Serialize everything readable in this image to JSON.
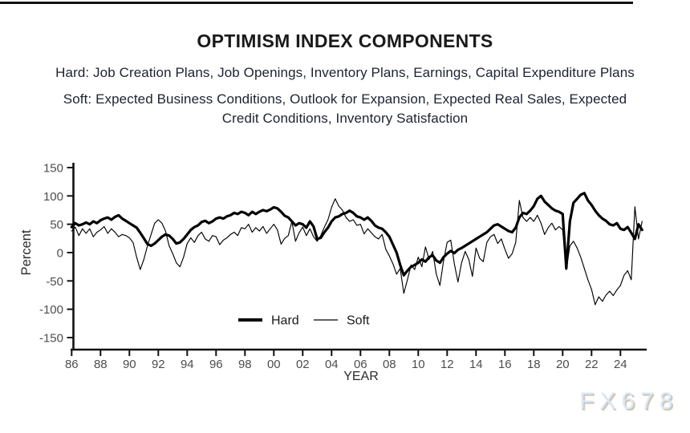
{
  "header": {
    "title": "OPTIMISM INDEX COMPONENTS",
    "hard_desc": "Hard: Job Creation Plans, Job Openings, Inventory Plans, Earnings, Capital Expenditure Plans",
    "soft_desc_line1": "Soft: Expected Business Conditions, Outlook for Expansion, Expected Real Sales, Expected",
    "soft_desc_line2": "Credit Conditions, Inventory Satisfaction"
  },
  "watermark": "FX678",
  "colors": {
    "line": "#000000",
    "axis": "#111111",
    "tick_label": "#4d4d4d",
    "axis_title": "#2b2b2b",
    "watermark_fill": "#dde9f8",
    "watermark_shadow": "#c9bfac"
  },
  "chart_data": {
    "type": "line",
    "title": "OPTIMISM INDEX COMPONENTS",
    "xlabel": "YEAR",
    "ylabel": "Percent",
    "x_start": 1986.0,
    "x_step": 0.25,
    "x_end": 2025.5,
    "ylim": [
      -150,
      150
    ],
    "grid": false,
    "legend_position": "bottom-center-inside",
    "y_ticks": [
      150,
      100,
      50,
      0,
      -50,
      -100,
      -150
    ],
    "x_ticks": [
      {
        "label": "86",
        "year": 1986
      },
      {
        "label": "88",
        "year": 1988
      },
      {
        "label": "90",
        "year": 1990
      },
      {
        "label": "92",
        "year": 1992
      },
      {
        "label": "94",
        "year": 1994
      },
      {
        "label": "96",
        "year": 1996
      },
      {
        "label": "98",
        "year": 1998
      },
      {
        "label": "00",
        "year": 2000
      },
      {
        "label": "02",
        "year": 2002
      },
      {
        "label": "04",
        "year": 2004
      },
      {
        "label": "06",
        "year": 2006
      },
      {
        "label": "08",
        "year": 2008
      },
      {
        "label": "10",
        "year": 2010
      },
      {
        "label": "12",
        "year": 2012
      },
      {
        "label": "14",
        "year": 2014
      },
      {
        "label": "16",
        "year": 2016
      },
      {
        "label": "18",
        "year": 2018
      },
      {
        "label": "20",
        "year": 2020
      },
      {
        "label": "22",
        "year": 2022
      },
      {
        "label": "24",
        "year": 2024
      }
    ],
    "series": [
      {
        "name": "Hard",
        "style": "thick",
        "values": [
          45,
          52,
          48,
          50,
          53,
          50,
          55,
          52,
          57,
          60,
          62,
          58,
          63,
          66,
          60,
          56,
          52,
          48,
          44,
          35,
          25,
          15,
          12,
          16,
          22,
          28,
          32,
          30,
          24,
          16,
          18,
          24,
          32,
          40,
          45,
          48,
          54,
          56,
          52,
          55,
          60,
          62,
          60,
          64,
          66,
          70,
          68,
          72,
          70,
          66,
          72,
          68,
          72,
          75,
          73,
          76,
          80,
          78,
          72,
          65,
          62,
          55,
          48,
          52,
          50,
          44,
          55,
          46,
          24,
          26,
          36,
          44,
          55,
          62,
          64,
          68,
          70,
          74,
          70,
          64,
          62,
          58,
          62,
          56,
          48,
          44,
          42,
          36,
          28,
          14,
          0,
          -22,
          -40,
          -32,
          -25,
          -22,
          -18,
          -12,
          -16,
          -8,
          -5,
          -14,
          -18,
          -8,
          -2,
          3,
          -1,
          5,
          8,
          12,
          16,
          20,
          24,
          28,
          32,
          36,
          42,
          48,
          50,
          46,
          42,
          38,
          36,
          44,
          62,
          70,
          68,
          74,
          82,
          95,
          100,
          90,
          84,
          78,
          74,
          72,
          68,
          -28,
          55,
          88,
          95,
          102,
          105,
          92,
          84,
          74,
          66,
          60,
          56,
          50,
          48,
          52,
          42,
          40,
          45,
          35,
          24,
          50,
          40
        ]
      },
      {
        "name": "Soft",
        "style": "thin",
        "values": [
          38,
          45,
          30,
          42,
          34,
          42,
          28,
          36,
          40,
          46,
          34,
          42,
          36,
          28,
          32,
          30,
          26,
          18,
          -8,
          -30,
          -12,
          12,
          32,
          52,
          58,
          52,
          38,
          12,
          -2,
          -18,
          -25,
          -8,
          16,
          26,
          18,
          30,
          36,
          24,
          20,
          30,
          28,
          14,
          22,
          26,
          32,
          36,
          30,
          44,
          42,
          50,
          36,
          44,
          38,
          46,
          34,
          42,
          50,
          40,
          15,
          25,
          30,
          55,
          20,
          35,
          45,
          30,
          42,
          28,
          20,
          30,
          45,
          58,
          80,
          95,
          82,
          75,
          62,
          55,
          58,
          48,
          50,
          33,
          42,
          35,
          28,
          24,
          32,
          6,
          -6,
          -20,
          -38,
          -28,
          -72,
          -48,
          -22,
          -30,
          -8,
          -25,
          10,
          -12,
          2,
          -38,
          -58,
          -15,
          18,
          22,
          -20,
          -52,
          -18,
          2,
          -12,
          -42,
          8,
          -10,
          -16,
          18,
          28,
          32,
          16,
          24,
          6,
          -10,
          -2,
          18,
          92,
          62,
          55,
          62,
          55,
          66,
          52,
          32,
          44,
          52,
          40,
          46,
          40,
          -30,
          12,
          20,
          8,
          -8,
          -28,
          -48,
          -65,
          -92,
          -78,
          -86,
          -75,
          -68,
          -76,
          -66,
          -58,
          -40,
          -32,
          -48,
          81,
          24,
          55
        ]
      }
    ]
  }
}
